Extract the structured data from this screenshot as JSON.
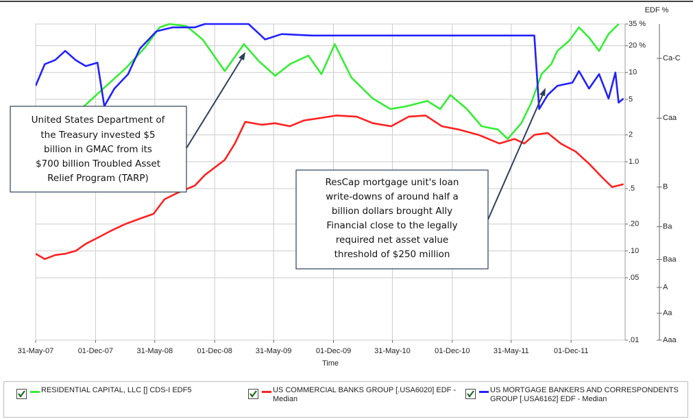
{
  "chart_data": {
    "type": "line",
    "y_label": "EDF %",
    "x_label": "Time",
    "log_scale": true,
    "grid": true,
    "legend": "bottom",
    "xlim": [
      "2007-05-31",
      "2012-05-15"
    ],
    "xticks": [
      {
        "value": "2007-05-31",
        "label": "31-May-07"
      },
      {
        "value": "2007-12-01",
        "label": "01-Dec-07"
      },
      {
        "value": "2008-05-31",
        "label": "31-May-08"
      },
      {
        "value": "2008-12-01",
        "label": "01-Dec-08"
      },
      {
        "value": "2009-05-31",
        "label": "31-May-09"
      },
      {
        "value": "2009-12-01",
        "label": "01-Dec-09"
      },
      {
        "value": "2010-05-31",
        "label": "31-May-10"
      },
      {
        "value": "2010-12-01",
        "label": "01-Dec-10"
      },
      {
        "value": "2011-05-31",
        "label": "31-May-11"
      },
      {
        "value": "2011-12-01",
        "label": "01-Dec-11"
      }
    ],
    "ylim": [
      0.01,
      35
    ],
    "yticks": [
      {
        "value": 35,
        "label": "35 %"
      },
      {
        "value": 20,
        "label": "20 %"
      },
      10,
      5,
      2,
      {
        "value": 1,
        "label": "1.0"
      },
      {
        "value": 0.5,
        "label": ".5"
      },
      {
        "value": 0.2,
        "label": ".20"
      },
      {
        "value": 0.1,
        "label": ".10"
      },
      {
        "value": 0.05,
        "label": ".05"
      },
      {
        "value": 0.01,
        "label": ".01"
      }
    ],
    "y2lim": [
      0.01,
      35
    ],
    "y2ticks": [
      {
        "value": 14.4,
        "label": "Ca-C"
      },
      {
        "value": 3.08,
        "label": "Caa"
      },
      {
        "value": 0.52,
        "label": "B"
      },
      {
        "value": 0.187,
        "label": "Ba"
      },
      {
        "value": 0.08,
        "label": "Baa"
      },
      {
        "value": 0.039,
        "label": "A"
      },
      {
        "value": 0.02,
        "label": "Aa"
      },
      {
        "value": 0.01,
        "label": "Aaa"
      }
    ],
    "annotations": [
      {
        "lines": [
          "United States Department of",
          "the Treasury invested $5",
          "billion in GMAC from its",
          "$700 billion Troubled Asset",
          "Relief Program (TARP)"
        ]
      },
      {
        "lines": [
          "ResCap mortgage  unit's loan",
          "write-downs of around half a",
          "billion dollars brought Ally",
          "Financial close to the legally",
          "required net asset value",
          "threshold of $250 million"
        ]
      }
    ],
    "series": [
      {
        "name": "RESIDENTIAL CAPITAL, LLC [] CDS-I EDF5",
        "color": "#33ee33",
        "x": [
          "2007-10-21",
          "2007-12-01",
          "2008-03-05",
          "2008-05-01",
          "2008-06-15",
          "2008-07-15",
          "2008-09-05",
          "2008-10-25",
          "2009-01-01",
          "2009-03-01",
          "2009-04-15",
          "2009-06-05",
          "2009-07-20",
          "2009-09-15",
          "2009-10-25",
          "2009-12-05",
          "2010-01-25",
          "2010-04-01",
          "2010-05-25",
          "2010-07-15",
          "2010-09-15",
          "2010-10-25",
          "2010-11-25",
          "2011-01-15",
          "2011-03-01",
          "2011-04-20",
          "2011-05-20",
          "2011-07-01",
          "2011-08-01",
          "2011-09-01",
          "2011-10-01",
          "2011-10-20",
          "2011-11-25",
          "2011-12-25",
          "2012-01-25",
          "2012-02-25",
          "2012-03-25",
          "2012-04-25"
        ],
        "values": [
          4.0,
          5.5,
          11.4,
          19.1,
          32.1,
          35,
          33.2,
          23.5,
          10.4,
          20.8,
          13.5,
          9.2,
          12.4,
          15.5,
          9.6,
          20.8,
          8.8,
          5.1,
          3.9,
          4.2,
          4.8,
          3.9,
          5.6,
          3.9,
          2.5,
          2.3,
          1.8,
          2.7,
          4.6,
          9.6,
          12.4,
          17.5,
          22.7,
          32.1,
          24.7,
          17.5,
          27.0,
          35
        ]
      },
      {
        "name": "US COMMERCIAL BANKS GROUP [.USA6020] EDF - Median",
        "color": "#ff2020",
        "x": [
          "2007-05-31",
          "2007-06-28",
          "2007-07-30",
          "2007-08-30",
          "2007-10-01",
          "2007-11-01",
          "2007-12-07",
          "2008-01-20",
          "2008-03-01",
          "2008-04-15",
          "2008-05-27",
          "2008-06-30",
          "2008-08-10",
          "2008-10-01",
          "2008-11-01",
          "2009-01-01",
          "2009-02-01",
          "2009-03-05",
          "2009-04-25",
          "2009-06-05",
          "2009-07-20",
          "2009-09-01",
          "2009-10-25",
          "2009-12-10",
          "2010-02-10",
          "2010-04-01",
          "2010-05-27",
          "2010-07-20",
          "2010-09-10",
          "2010-10-30",
          "2010-12-20",
          "2011-02-20",
          "2011-04-25",
          "2011-06-10",
          "2011-07-10",
          "2011-08-10",
          "2011-09-20",
          "2011-10-30",
          "2011-12-15",
          "2012-01-25",
          "2012-03-05",
          "2012-04-05",
          "2012-05-10"
        ],
        "values": [
          0.093,
          0.081,
          0.09,
          0.093,
          0.1,
          0.12,
          0.14,
          0.17,
          0.2,
          0.23,
          0.26,
          0.38,
          0.45,
          0.54,
          0.71,
          1.05,
          1.6,
          2.8,
          2.6,
          2.7,
          2.5,
          2.9,
          3.1,
          3.3,
          3.2,
          2.7,
          2.5,
          3.2,
          3.3,
          2.5,
          2.3,
          2.0,
          1.6,
          1.8,
          1.6,
          2.0,
          2.1,
          1.6,
          1.3,
          0.95,
          0.67,
          0.52,
          0.56
        ]
      },
      {
        "name": "US MORTGAGE BANKERS AND CORRESPONDENTS GROUP [.USA6162] EDF - Median",
        "color": "#2020ff",
        "x": [
          "2007-05-31",
          "2007-06-28",
          "2007-07-30",
          "2007-08-30",
          "2007-10-01",
          "2007-11-01",
          "2007-12-07",
          "2007-12-28",
          "2008-01-28",
          "2008-03-10",
          "2008-04-15",
          "2008-06-05",
          "2008-07-25",
          "2008-10-01",
          "2008-11-01",
          "2009-03-15",
          "2009-05-05",
          "2009-06-25",
          "2009-09-25",
          "2011-08-10",
          "2011-08-25",
          "2011-09-20",
          "2011-10-20",
          "2011-12-05",
          "2011-12-25",
          "2012-01-25",
          "2012-02-25",
          "2012-03-25",
          "2012-04-15",
          "2012-04-25",
          "2012-05-10"
        ],
        "values": [
          7.1,
          12.4,
          13.8,
          17.5,
          13.8,
          11.8,
          12.9,
          4.2,
          6.6,
          9.6,
          18.5,
          29.0,
          32.1,
          32.1,
          35,
          35,
          23.5,
          27,
          26,
          26,
          3.9,
          5.6,
          7.1,
          7.7,
          10.4,
          6.6,
          9.6,
          5.1,
          10.0,
          4.6,
          5.1
        ]
      }
    ]
  }
}
